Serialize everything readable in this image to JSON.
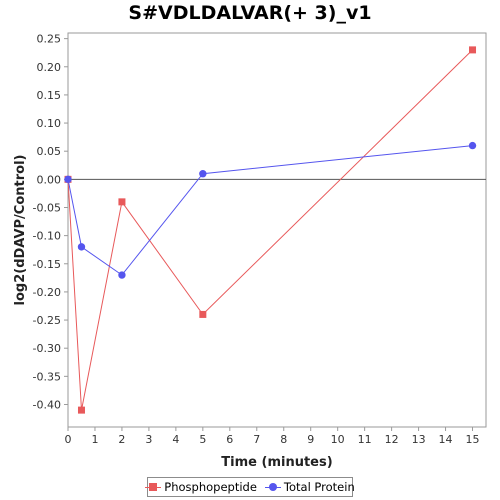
{
  "chart_data": {
    "type": "line",
    "title": "S#VDLDALVAR(+ 3)_v1",
    "xlabel": "Time (minutes)",
    "ylabel": "log2(dDAVP/Control)",
    "xlim": [
      0,
      15.5
    ],
    "ylim": [
      -0.44,
      0.26
    ],
    "x_ticks": [
      0,
      1,
      2,
      3,
      4,
      5,
      6,
      7,
      8,
      9,
      10,
      11,
      12,
      13,
      14,
      15
    ],
    "y_ticks": [
      0.25,
      0.2,
      0.15,
      0.1,
      0.05,
      0.0,
      -0.05,
      -0.1,
      -0.15,
      -0.2,
      -0.25,
      -0.3,
      -0.35,
      -0.4
    ],
    "y_tick_labels": [
      "0.25",
      "0.20",
      "0.15",
      "0.10",
      "0.05",
      "0.00",
      "-0.05",
      "-0.10",
      "-0.15",
      "-0.20",
      "-0.25",
      "-0.30",
      "-0.35",
      "-0.40"
    ],
    "zero_line": true,
    "grid": false,
    "legend_position": "bottom",
    "series": [
      {
        "name": "Phosphopeptide",
        "color": "#e8595a",
        "marker": "square",
        "points": [
          [
            0,
            0.0
          ],
          [
            0.5,
            -0.41
          ],
          [
            2,
            -0.04
          ],
          [
            5,
            -0.24
          ],
          [
            15,
            0.23
          ]
        ]
      },
      {
        "name": "Total Protein",
        "color": "#5555ee",
        "marker": "circle",
        "points": [
          [
            0,
            0.0
          ],
          [
            0.5,
            -0.12
          ],
          [
            2,
            -0.17
          ],
          [
            5,
            0.01
          ],
          [
            15,
            0.06
          ]
        ]
      }
    ]
  }
}
